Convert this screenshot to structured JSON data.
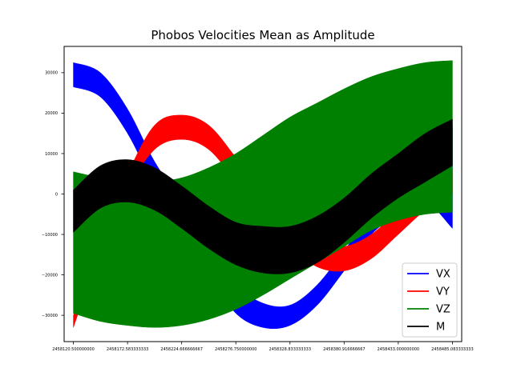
{
  "chart_data": {
    "type": "area",
    "title": "Phobos Velocities Mean as Amplitude",
    "xlabel": "",
    "ylabel": "",
    "xlim": [
      2458111.6,
      2458494.0
    ],
    "ylim": [
      -36500,
      36500
    ],
    "x_ticks": [
      2458120.5,
      2458172.583333333,
      2458224.666666667,
      2458276.75,
      2458328.833333333,
      2458380.916666667,
      2458433.0,
      2458485.083333333
    ],
    "x_tick_labels": [
      "2458120.500000000",
      "2458172.583333333",
      "2458224.666666667",
      "2458276.750000000",
      "2458328.833333333",
      "2458380.916666667",
      "2458433.000000000",
      "2458485.083333333"
    ],
    "y_ticks": [
      -30000,
      -20000,
      -10000,
      0,
      10000,
      20000,
      30000
    ],
    "y_tick_labels": [
      "−30000",
      "−20000",
      "−10000",
      "0",
      "10000",
      "20000",
      "30000"
    ],
    "grid": false,
    "legend_position": "lower-right",
    "x": [
      2458120.5,
      2458146.5,
      2458172.6,
      2458198.6,
      2458224.7,
      2458250.7,
      2458276.8,
      2458302.8,
      2458328.8,
      2458354.9,
      2458380.9,
      2458407.0,
      2458433.0,
      2458459.0,
      2458485.1
    ],
    "series": [
      {
        "name": "VX",
        "color": "#0000ff",
        "upper": [
          32500,
          30000,
          21000,
          8000,
          -2000,
          -14000,
          -22500,
          -27000,
          -27500,
          -22500,
          -14000,
          -5000,
          5000,
          14000,
          17000
        ],
        "lower": [
          26500,
          24000,
          15000,
          2000,
          -8000,
          -20000,
          -29500,
          -33000,
          -32500,
          -27500,
          -19000,
          -10000,
          -5000,
          -2000,
          -8500
        ]
      },
      {
        "name": "VY",
        "color": "#ff0000",
        "upper": [
          -30000,
          -10000,
          5000,
          17000,
          19500,
          17000,
          9000,
          0,
          -7000,
          -12000,
          -13000,
          -10000,
          -4000,
          2000,
          6000
        ],
        "lower": [
          -33000,
          -14000,
          1000,
          11000,
          13500,
          11000,
          3000,
          -6000,
          -13000,
          -18000,
          -19000,
          -16000,
          -10000,
          -4000,
          0
        ]
      },
      {
        "name": "VZ",
        "color": "#008000",
        "upper": [
          5500,
          4000,
          3000,
          3000,
          4000,
          6500,
          10000,
          14500,
          19000,
          22500,
          26000,
          29000,
          31000,
          32500,
          33000
        ],
        "lower": [
          -29500,
          -31500,
          -32500,
          -33000,
          -32500,
          -31000,
          -28500,
          -25000,
          -21000,
          -17000,
          -13000,
          -9000,
          -6500,
          -5000,
          -4500
        ]
      },
      {
        "name": "M",
        "color": "#000000",
        "upper": [
          1000,
          7000,
          8500,
          6500,
          2000,
          -3000,
          -7000,
          -8000,
          -8000,
          -5500,
          -1000,
          5000,
          10000,
          15000,
          18500
        ],
        "lower": [
          -9500,
          -3500,
          -2000,
          -4000,
          -8500,
          -13500,
          -17500,
          -19500,
          -19500,
          -17000,
          -12000,
          -6000,
          -1000,
          3000,
          7000
        ]
      }
    ]
  }
}
